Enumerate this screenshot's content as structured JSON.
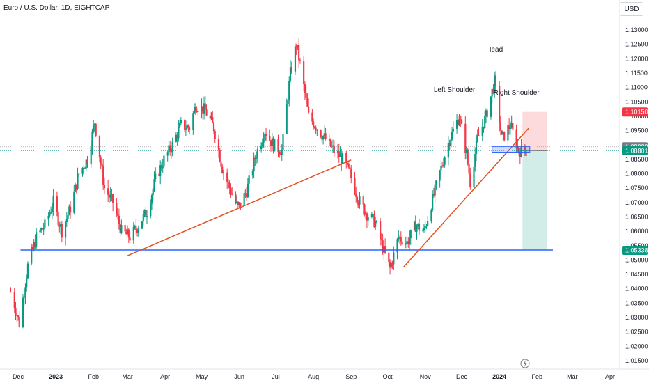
{
  "header": {
    "title": "Euro / U.S. Dollar, 1D, EIGHTCAP",
    "currency": "USD"
  },
  "colors": {
    "up": "#089981",
    "down": "#f23645",
    "trendline": "#e0501f",
    "support": "#2962ff",
    "stop_zone": "#f23645",
    "target_zone": "#089981"
  },
  "chart_data": {
    "type": "candlestick",
    "symbol": "Euro / U.S. Dollar",
    "interval": "1D",
    "exchange": "EIGHTCAP",
    "y_axis": {
      "unit": "USD",
      "ticks": [
        "1.13000",
        "1.12500",
        "1.12000",
        "1.11500",
        "1.11000",
        "1.10500",
        "1.10000",
        "1.09500",
        "1.09000",
        "1.08500",
        "1.08000",
        "1.07500",
        "1.07000",
        "1.06500",
        "1.06000",
        "1.05500",
        "1.05000",
        "1.04500",
        "1.04000",
        "1.03500",
        "1.03000",
        "1.02500",
        "1.02000",
        "1.01500"
      ],
      "range": [
        1.0115,
        1.1345
      ]
    },
    "x_axis": {
      "ticks": [
        {
          "label": "Dec",
          "bold": false
        },
        {
          "label": "2023",
          "bold": true
        },
        {
          "label": "Feb",
          "bold": false
        },
        {
          "label": "Mar",
          "bold": false
        },
        {
          "label": "Apr",
          "bold": false
        },
        {
          "label": "May",
          "bold": false
        },
        {
          "label": "Jun",
          "bold": false
        },
        {
          "label": "Jul",
          "bold": false
        },
        {
          "label": "Aug",
          "bold": false
        },
        {
          "label": "Sep",
          "bold": false
        },
        {
          "label": "Oct",
          "bold": false
        },
        {
          "label": "Nov",
          "bold": false
        },
        {
          "label": "Dec",
          "bold": false
        },
        {
          "label": "2024",
          "bold": true
        },
        {
          "label": "Feb",
          "bold": false
        },
        {
          "label": "Mar",
          "bold": false
        },
        {
          "label": "Apr",
          "bold": false
        }
      ]
    },
    "price_path": [
      [
        "2022-11-25",
        1.039
      ],
      [
        "2022-12-02",
        1.028
      ],
      [
        "2022-12-09",
        1.048
      ],
      [
        "2022-12-16",
        1.058
      ],
      [
        "2022-12-23",
        1.062
      ],
      [
        "2022-12-30",
        1.07
      ],
      [
        "2023-01-06",
        1.06
      ],
      [
        "2023-01-13",
        1.068
      ],
      [
        "2023-01-20",
        1.08
      ],
      [
        "2023-01-27",
        1.085
      ],
      [
        "2023-02-02",
        1.098
      ],
      [
        "2023-02-10",
        1.075
      ],
      [
        "2023-02-17",
        1.07
      ],
      [
        "2023-02-24",
        1.06
      ],
      [
        "2023-03-03",
        1.058
      ],
      [
        "2023-03-10",
        1.062
      ],
      [
        "2023-03-17",
        1.067
      ],
      [
        "2023-03-24",
        1.078
      ],
      [
        "2023-03-31",
        1.085
      ],
      [
        "2023-04-07",
        1.09
      ],
      [
        "2023-04-14",
        1.097
      ],
      [
        "2023-04-21",
        1.096
      ],
      [
        "2023-04-26",
        1.104
      ],
      [
        "2023-05-04",
        1.102
      ],
      [
        "2023-05-11",
        1.096
      ],
      [
        "2023-05-18",
        1.082
      ],
      [
        "2023-05-25",
        1.074
      ],
      [
        "2023-05-31",
        1.068
      ],
      [
        "2023-06-07",
        1.074
      ],
      [
        "2023-06-15",
        1.087
      ],
      [
        "2023-06-22",
        1.095
      ],
      [
        "2023-06-29",
        1.09
      ],
      [
        "2023-07-06",
        1.088
      ],
      [
        "2023-07-13",
        1.115
      ],
      [
        "2023-07-18",
        1.125
      ],
      [
        "2023-07-21",
        1.118
      ],
      [
        "2023-07-28",
        1.1
      ],
      [
        "2023-08-04",
        1.096
      ],
      [
        "2023-08-11",
        1.092
      ],
      [
        "2023-08-18",
        1.088
      ],
      [
        "2023-08-25",
        1.085
      ],
      [
        "2023-08-31",
        1.08
      ],
      [
        "2023-09-07",
        1.071
      ],
      [
        "2023-09-14",
        1.066
      ],
      [
        "2023-09-21",
        1.063
      ],
      [
        "2023-09-28",
        1.053
      ],
      [
        "2023-10-03",
        1.047
      ],
      [
        "2023-10-10",
        1.058
      ],
      [
        "2023-10-17",
        1.056
      ],
      [
        "2023-10-24",
        1.062
      ],
      [
        "2023-10-31",
        1.06
      ],
      [
        "2023-11-07",
        1.071
      ],
      [
        "2023-11-14",
        1.082
      ],
      [
        "2023-11-21",
        1.092
      ],
      [
        "2023-11-29",
        1.1
      ],
      [
        "2023-12-05",
        1.087
      ],
      [
        "2023-12-08",
        1.077
      ],
      [
        "2023-12-14",
        1.092
      ],
      [
        "2023-12-21",
        1.1
      ],
      [
        "2023-12-28",
        1.112
      ],
      [
        "2024-01-03",
        1.092
      ],
      [
        "2024-01-10",
        1.097
      ],
      [
        "2024-01-17",
        1.088
      ],
      [
        "2024-01-23",
        1.088
      ]
    ],
    "annotations": [
      {
        "type": "text",
        "text": "Left Shoulder",
        "date": "2023-11-25",
        "price": 1.1085
      },
      {
        "type": "text",
        "text": "Head",
        "date": "2023-12-28",
        "price": 1.1225
      },
      {
        "type": "text",
        "text": "Right Shoulder",
        "date": "2024-01-15",
        "price": 1.1075
      },
      {
        "type": "horizontal_line",
        "name": "support",
        "price": 1.0535,
        "from": "2022-12-03",
        "to": "2024-02-14"
      },
      {
        "type": "trendline",
        "from": [
          "2023-03-01",
          1.0515
        ],
        "to": [
          "2023-09-01",
          1.0848
        ]
      },
      {
        "type": "trendline",
        "from": [
          "2023-10-14",
          1.0475
        ],
        "to": [
          "2024-01-25",
          1.0958
        ]
      },
      {
        "type": "zone",
        "name": "neckline-box",
        "from": "2023-12-26",
        "to": "2024-01-26",
        "low": 1.0875,
        "high": 1.0895
      }
    ],
    "position": {
      "side": "short",
      "from": "2024-01-20",
      "to": "2024-02-09",
      "entry": 1.08801,
      "stop": 1.1015,
      "target": 1.05338
    },
    "price_labels": [
      {
        "value": "1.10150",
        "color": "#f23645"
      },
      {
        "value": "1.08939",
        "color": "#787b86"
      },
      {
        "value": "1.08801",
        "color": "#089981"
      },
      {
        "value": "1.05338",
        "color": "#089981"
      }
    ],
    "grid": false
  }
}
